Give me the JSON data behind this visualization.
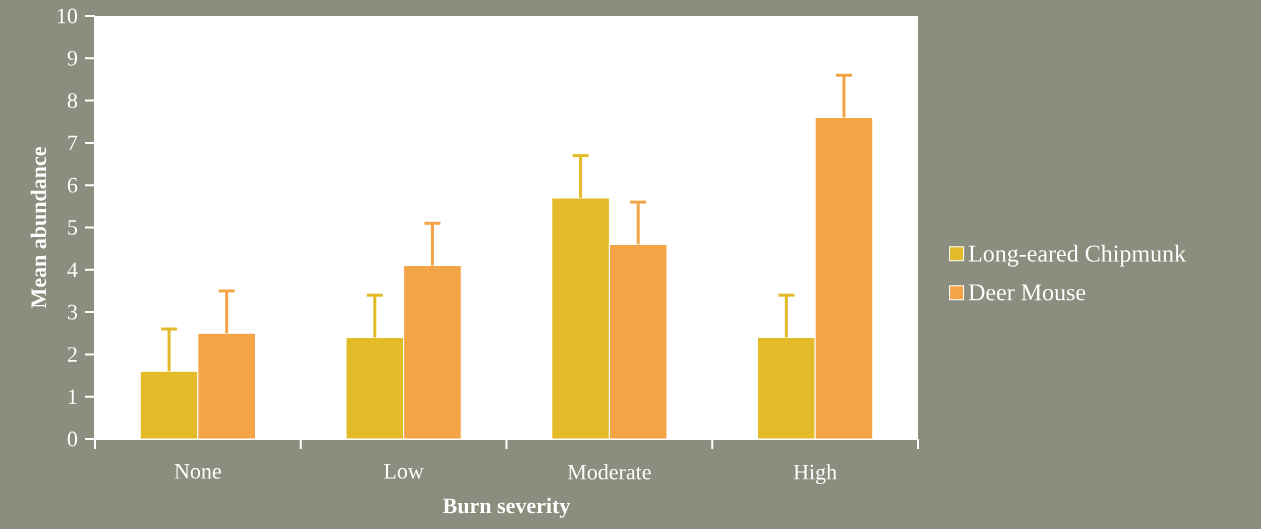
{
  "chart_data": {
    "type": "bar",
    "xlabel": "Burn severity",
    "ylabel": "Mean abundance",
    "categories": [
      "None",
      "Low",
      "Moderate",
      "High"
    ],
    "series": [
      {
        "name": "Long-eared Chipmunk",
        "color": "#e3bb29",
        "values": [
          1.6,
          2.4,
          5.7,
          2.4
        ],
        "errors": [
          [
            1.6,
            2.6
          ],
          [
            2.4,
            3.4
          ],
          [
            5.7,
            6.7
          ],
          [
            2.4,
            3.4
          ]
        ]
      },
      {
        "name": "Deer Mouse",
        "color": "#f2a446",
        "values": [
          2.5,
          4.1,
          4.6,
          7.6
        ],
        "errors": [
          [
            2.5,
            3.5
          ],
          [
            4.1,
            5.1
          ],
          [
            4.6,
            5.6
          ],
          [
            7.6,
            8.6
          ]
        ]
      }
    ],
    "ylim": [
      0,
      10
    ],
    "yticks": [
      0,
      1,
      2,
      3,
      4,
      5,
      6,
      7,
      8,
      9,
      10
    ],
    "legend": "right"
  }
}
